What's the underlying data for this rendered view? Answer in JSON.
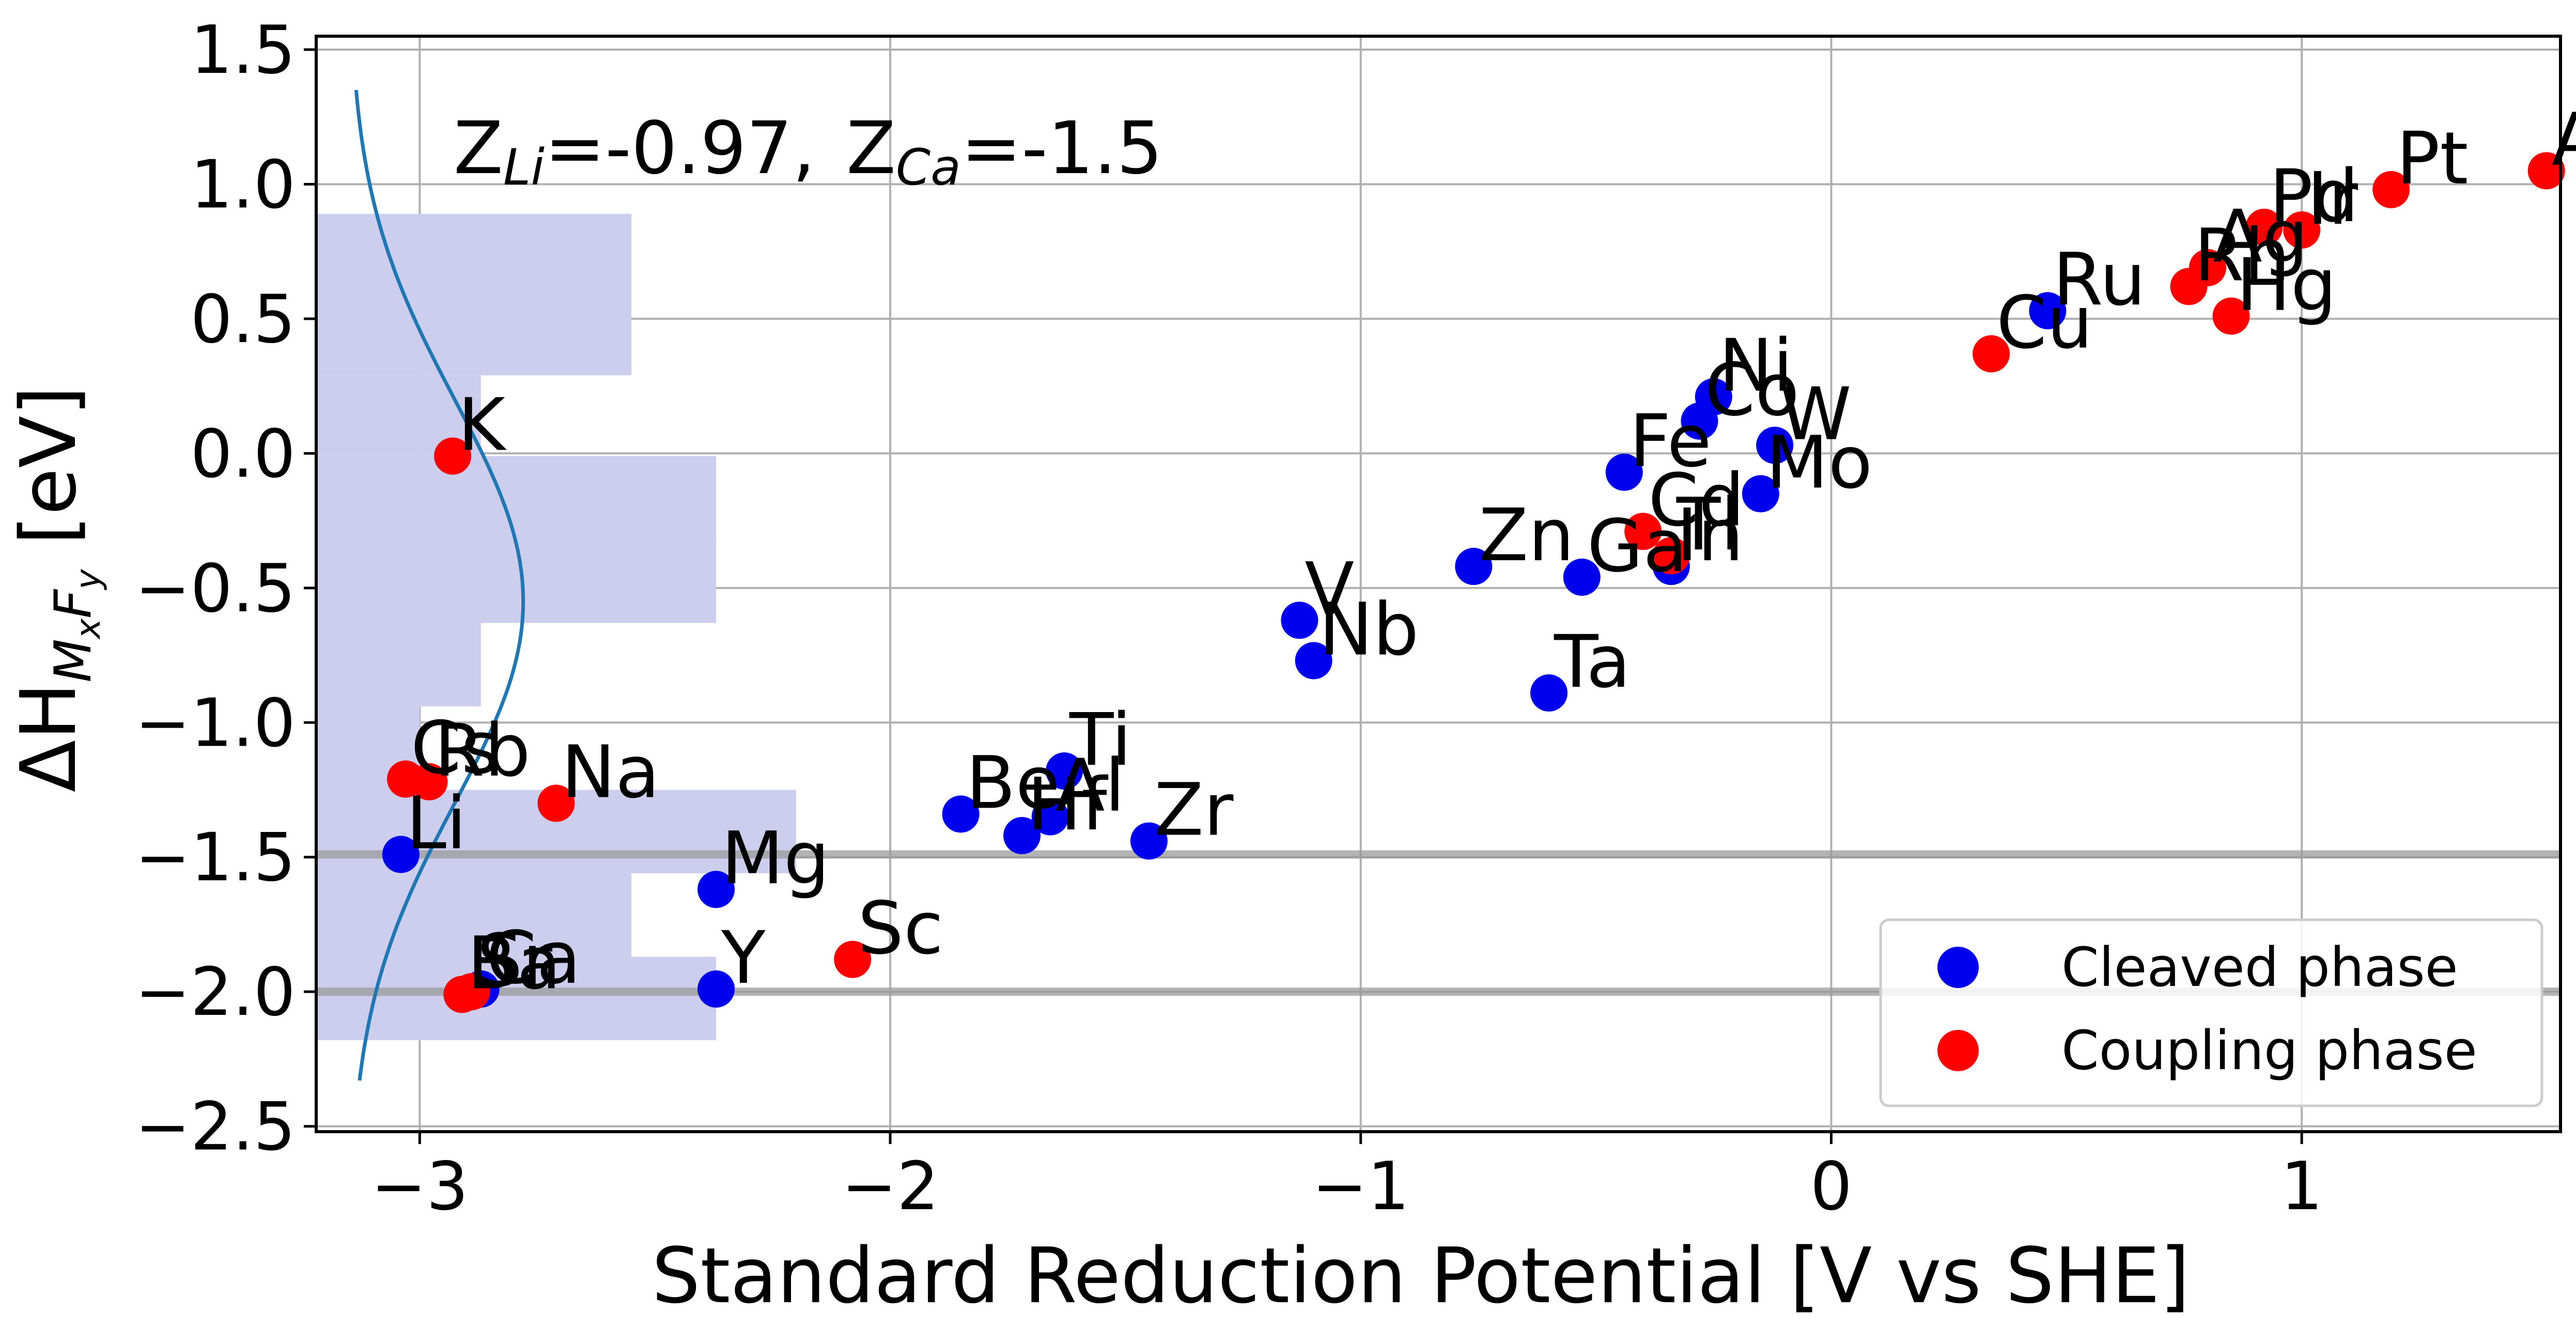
{
  "chart_data": {
    "type": "scatter",
    "xlabel": "Standard Reduction Potential [V vs SHE]",
    "ylabel": {
      "base": "ΔH",
      "sub": "M",
      "sub_x": "x",
      "sub_mid": "F",
      "sub_y": "y",
      "unit": " [eV]"
    },
    "annotation": {
      "z1": "Z",
      "z1_sub": "Li",
      "z1_val": "=-0.97,",
      "z2": "Z",
      "z2_sub": "Ca",
      "z2_val": "=-1.5"
    },
    "xlim": [
      -3.22,
      1.55
    ],
    "ylim": [
      -2.52,
      1.55
    ],
    "xticks": [
      {
        "v": -3,
        "label": "−3"
      },
      {
        "v": -2,
        "label": "−2"
      },
      {
        "v": -1,
        "label": "−1"
      },
      {
        "v": 0,
        "label": "0"
      },
      {
        "v": 1,
        "label": "1"
      }
    ],
    "yticks": [
      {
        "v": -2.5,
        "label": "−2.5"
      },
      {
        "v": -2.0,
        "label": "−2.0"
      },
      {
        "v": -1.5,
        "label": "−1.5"
      },
      {
        "v": -1.0,
        "label": "−1.0"
      },
      {
        "v": -0.5,
        "label": "−0.5"
      },
      {
        "v": 0.0,
        "label": "0.0"
      },
      {
        "v": 0.5,
        "label": "0.5"
      },
      {
        "v": 1.0,
        "label": "1.0"
      },
      {
        "v": 1.5,
        "label": "1.5"
      }
    ],
    "grid": true,
    "legend_position": "bottom-right",
    "colors": {
      "cleaved": "#0000ee",
      "coupling": "#ff0000",
      "curve": "#1f77b4",
      "hist": "#cdcdee",
      "hline": "#999999"
    },
    "series": [
      {
        "name": "Cleaved phase",
        "color": "#0000ee",
        "points": [
          {
            "label": "Li",
            "x": -3.04,
            "y": -1.49
          },
          {
            "label": "Ca",
            "x": -2.87,
            "y": -1.99
          },
          {
            "label": "Mg",
            "x": -2.37,
            "y": -1.62
          },
          {
            "label": "Y",
            "x": -2.37,
            "y": -1.99
          },
          {
            "label": "Be",
            "x": -1.85,
            "y": -1.34
          },
          {
            "label": "Hf",
            "x": -1.72,
            "y": -1.42
          },
          {
            "label": "Al",
            "x": -1.66,
            "y": -1.35
          },
          {
            "label": "Ti",
            "x": -1.63,
            "y": -1.18
          },
          {
            "label": "Zr",
            "x": -1.45,
            "y": -1.44
          },
          {
            "label": "V",
            "x": -1.13,
            "y": -0.62
          },
          {
            "label": "Nb",
            "x": -1.1,
            "y": -0.77
          },
          {
            "label": "Zn",
            "x": -0.76,
            "y": -0.42
          },
          {
            "label": "Ta",
            "x": -0.6,
            "y": -0.89
          },
          {
            "label": "Ga",
            "x": -0.53,
            "y": -0.46
          },
          {
            "label": "Fe",
            "x": -0.44,
            "y": -0.07
          },
          {
            "label": "In",
            "x": -0.34,
            "y": -0.42
          },
          {
            "label": "Co",
            "x": -0.28,
            "y": 0.12
          },
          {
            "label": "Ni",
            "x": -0.25,
            "y": 0.21
          },
          {
            "label": "Mo",
            "x": -0.15,
            "y": -0.15
          },
          {
            "label": "W",
            "x": -0.12,
            "y": 0.03
          },
          {
            "label": "Ru",
            "x": 0.46,
            "y": 0.53
          }
        ]
      },
      {
        "name": "Coupling phase",
        "color": "#ff0000",
        "points": [
          {
            "label": "Cs",
            "x": -3.03,
            "y": -1.21
          },
          {
            "label": "Rb",
            "x": -2.98,
            "y": -1.22
          },
          {
            "label": "K",
            "x": -2.93,
            "y": -0.01
          },
          {
            "label": "Ba",
            "x": -2.91,
            "y": -2.01
          },
          {
            "label": "Sr",
            "x": -2.89,
            "y": -2.0
          },
          {
            "label": "Na",
            "x": -2.71,
            "y": -1.3
          },
          {
            "label": "Sc",
            "x": -2.08,
            "y": -1.88
          },
          {
            "label": "Cd",
            "x": -0.4,
            "y": -0.29
          },
          {
            "label": "Tl",
            "x": -0.34,
            "y": -0.38
          },
          {
            "label": "Cu",
            "x": 0.34,
            "y": 0.37
          },
          {
            "label": "Rh",
            "x": 0.76,
            "y": 0.62
          },
          {
            "label": "Ag",
            "x": 0.8,
            "y": 0.69
          },
          {
            "label": "Hg",
            "x": 0.85,
            "y": 0.51
          },
          {
            "label": "Pd",
            "x": 0.92,
            "y": 0.84
          },
          {
            "label": "Ir",
            "x": 1.0,
            "y": 0.83
          },
          {
            "label": "Pt",
            "x": 1.19,
            "y": 0.98
          },
          {
            "label": "Au",
            "x": 1.52,
            "y": 1.05
          }
        ]
      }
    ],
    "histogram": [
      {
        "y0": -2.18,
        "y1": -1.87,
        "x1": -2.37
      },
      {
        "y0": -1.87,
        "y1": -1.56,
        "x1": -2.55
      },
      {
        "y0": -1.56,
        "y1": -1.25,
        "x1": -2.2
      },
      {
        "y0": -1.25,
        "y1": -0.94,
        "x1": -3.0
      },
      {
        "y0": -0.94,
        "y1": -0.63,
        "x1": -2.87
      },
      {
        "y0": -0.63,
        "y1": -0.32,
        "x1": -2.37
      },
      {
        "y0": -0.32,
        "y1": -0.01,
        "x1": -2.37
      },
      {
        "y0": -0.01,
        "y1": 0.29,
        "x1": -2.87
      },
      {
        "y0": 0.29,
        "y1": 0.89,
        "x1": -2.55
      }
    ],
    "density_curve": {
      "mu": -0.55,
      "sigma": 0.75,
      "x_base": -3.15,
      "x_peak": -2.78,
      "y_from": -2.33,
      "y_to": 1.35
    },
    "hlines": [
      -1.49,
      -2.0
    ]
  }
}
